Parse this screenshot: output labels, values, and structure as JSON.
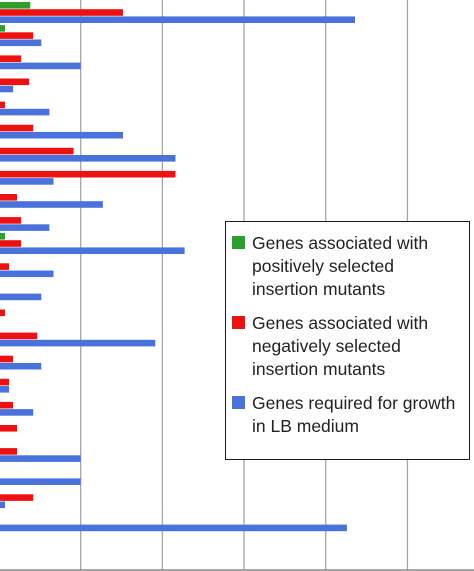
{
  "chart_data": {
    "type": "bar",
    "orientation": "horizontal",
    "xlim": [
      0,
      470
    ],
    "grid": true,
    "gridlines_x": [
      80,
      161,
      242,
      323,
      404
    ],
    "legend": "right",
    "series": [
      {
        "name": "Genes associated with positively selected insertion mutants",
        "color": "#2ca02c",
        "values": [
          30,
          5,
          0,
          0,
          0,
          0,
          0,
          0,
          0,
          0,
          5,
          0,
          0,
          0,
          0,
          0,
          0,
          0,
          0,
          0,
          0,
          0,
          0
        ]
      },
      {
        "name": "Genes associated with negatively selected insertion mutants",
        "color": "#ee1111",
        "values": [
          122,
          33,
          21,
          29,
          5,
          33,
          73,
          174,
          17,
          21,
          21,
          9,
          0,
          5,
          37,
          13,
          9,
          13,
          17,
          17,
          0,
          33,
          0
        ]
      },
      {
        "name": "Genes required for growth in LB medium",
        "color": "#4a72dc",
        "values": [
          352,
          41,
          80,
          13,
          49,
          122,
          174,
          53,
          102,
          49,
          183,
          53,
          41,
          0,
          154,
          41,
          9,
          33,
          0,
          80,
          80,
          5,
          344
        ]
      }
    ]
  }
}
